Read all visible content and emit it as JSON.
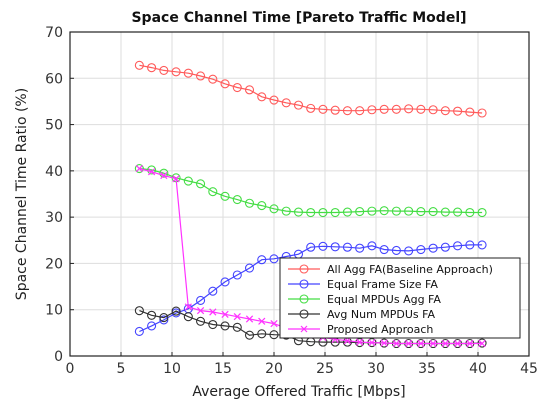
{
  "chart_data": {
    "type": "line",
    "title": "Space Channel Time [Pareto Traffic Model]",
    "xlabel": "Average Offered Traffic [Mbps]",
    "ylabel": "Space Channel Time Ratio (%)",
    "xlim": [
      0,
      45
    ],
    "ylim": [
      0,
      70
    ],
    "xticks": [
      "0",
      "5",
      "10",
      "15",
      "20",
      "25",
      "30",
      "35",
      "40",
      "45"
    ],
    "yticks": [
      "0",
      "10",
      "20",
      "30",
      "40",
      "50",
      "60",
      "70"
    ],
    "grid": true,
    "legend_position": "lower-right",
    "series": [
      {
        "name": "All Agg FA(Baseline Approach)",
        "color": "#ff5a5a",
        "marker": "circle",
        "x": [
          6.8,
          8.0,
          9.2,
          10.4,
          11.6,
          12.8,
          14.0,
          15.2,
          16.4,
          17.6,
          18.8,
          20.0,
          21.2,
          22.4,
          23.6,
          24.8,
          26.0,
          27.2,
          28.4,
          29.6,
          30.8,
          32.0,
          33.2,
          34.4,
          35.6,
          36.8,
          38.0,
          39.2,
          40.4
        ],
        "y": [
          62.8,
          62.3,
          61.7,
          61.4,
          61.1,
          60.5,
          59.8,
          58.8,
          58.0,
          57.5,
          56.0,
          55.3,
          54.7,
          54.2,
          53.5,
          53.3,
          53.1,
          53.0,
          53.0,
          53.2,
          53.3,
          53.3,
          53.4,
          53.3,
          53.2,
          53.0,
          52.9,
          52.7,
          52.5
        ]
      },
      {
        "name": "Equal Frame Size FA",
        "color": "#4444ff",
        "marker": "circle",
        "x": [
          6.8,
          8.0,
          9.2,
          10.4,
          11.6,
          12.8,
          14.0,
          15.2,
          16.4,
          17.6,
          18.8,
          20.0,
          21.2,
          22.4,
          23.6,
          24.8,
          26.0,
          27.2,
          28.4,
          29.6,
          30.8,
          32.0,
          33.2,
          34.4,
          35.6,
          36.8,
          38.0,
          39.2,
          40.4
        ],
        "y": [
          5.3,
          6.5,
          7.8,
          9.3,
          10.2,
          12.0,
          14.0,
          16.0,
          17.5,
          19.0,
          20.8,
          21.0,
          21.5,
          22.0,
          23.5,
          23.7,
          23.6,
          23.5,
          23.3,
          23.8,
          23.0,
          22.8,
          22.7,
          23.0,
          23.3,
          23.5,
          23.8,
          24.0,
          24.0
        ]
      },
      {
        "name": "Equal MPDUs Agg FA",
        "color": "#44dd44",
        "marker": "circle",
        "x": [
          6.8,
          8.0,
          9.2,
          10.4,
          11.6,
          12.8,
          14.0,
          15.2,
          16.4,
          17.6,
          18.8,
          20.0,
          21.2,
          22.4,
          23.6,
          24.8,
          26.0,
          27.2,
          28.4,
          29.6,
          30.8,
          32.0,
          33.2,
          34.4,
          35.6,
          36.8,
          38.0,
          39.2,
          40.4
        ],
        "y": [
          40.5,
          40.2,
          39.5,
          38.5,
          37.8,
          37.2,
          35.5,
          34.5,
          33.8,
          33.0,
          32.5,
          31.8,
          31.3,
          31.1,
          31.0,
          31.0,
          31.0,
          31.1,
          31.2,
          31.3,
          31.4,
          31.3,
          31.3,
          31.2,
          31.2,
          31.1,
          31.1,
          31.0,
          31.0
        ]
      },
      {
        "name": "Avg Num MPDUs FA",
        "color": "#333333",
        "marker": "circle",
        "x": [
          6.8,
          8.0,
          9.2,
          10.4,
          11.6,
          12.8,
          14.0,
          15.2,
          16.4,
          17.6,
          18.8,
          20.0,
          21.2,
          22.4,
          23.6,
          24.8,
          26.0,
          27.2,
          28.4,
          29.6,
          30.8,
          32.0,
          33.2,
          34.4,
          35.6,
          36.8,
          38.0,
          39.2,
          40.4
        ],
        "y": [
          9.8,
          8.8,
          8.3,
          9.7,
          8.5,
          7.5,
          6.8,
          6.5,
          6.2,
          4.5,
          4.8,
          4.6,
          4.5,
          3.3,
          3.1,
          3.0,
          3.0,
          3.0,
          2.9,
          2.9,
          2.8,
          2.7,
          2.7,
          2.7,
          2.7,
          2.7,
          2.7,
          2.7,
          2.8
        ]
      },
      {
        "name": "Proposed Approach",
        "color": "#ff33ff",
        "marker": "x",
        "x": [
          6.8,
          8.0,
          9.2,
          10.4,
          11.6,
          12.8,
          14.0,
          15.2,
          16.4,
          17.6,
          18.8,
          20.0,
          21.2,
          22.4,
          23.6,
          24.8,
          26.0,
          27.2,
          28.4,
          29.6,
          30.8,
          32.0,
          33.2,
          34.4,
          35.6,
          36.8,
          38.0,
          39.2,
          40.4
        ],
        "y": [
          40.5,
          39.8,
          39.0,
          38.3,
          10.6,
          9.8,
          9.5,
          9.0,
          8.5,
          8.0,
          7.5,
          7.0,
          6.0,
          5.3,
          4.5,
          4.0,
          3.6,
          3.3,
          3.0,
          2.9,
          2.8,
          2.7,
          2.7,
          2.7,
          2.7,
          2.7,
          2.7,
          2.7,
          2.7
        ]
      }
    ]
  }
}
